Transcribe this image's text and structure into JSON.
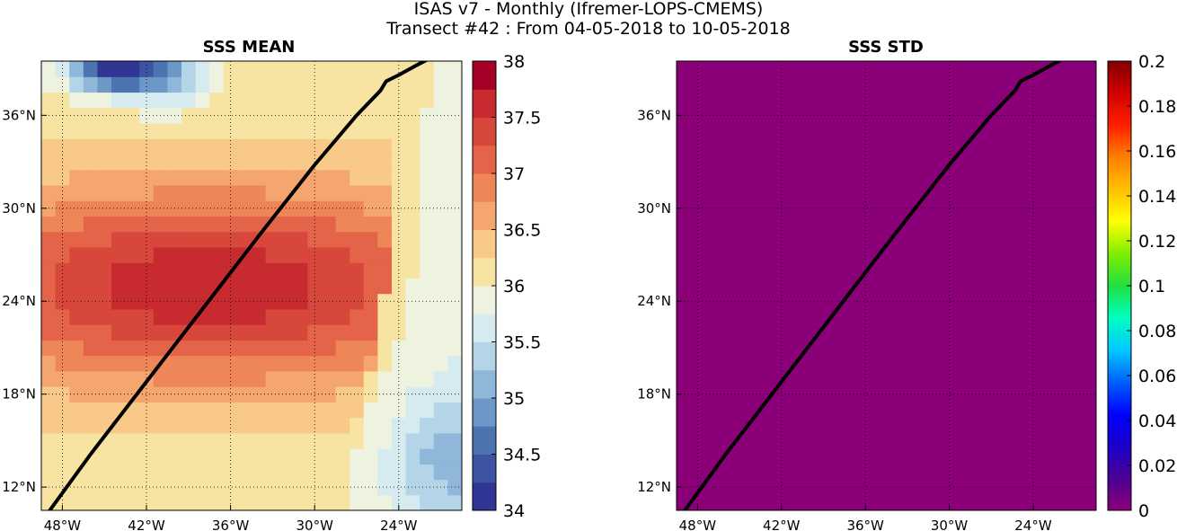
{
  "figure": {
    "title_line1": "ISAS v7 - Monthly (Ifremer-LOPS-CMEMS)",
    "title_line2": "Transect #42 : From 04-05-2018 to 10-05-2018"
  },
  "chart_data": [
    {
      "type": "heatmap",
      "title": "SSS MEAN",
      "xlabel": "",
      "ylabel": "",
      "xlim": [
        -49.5,
        -19.5
      ],
      "ylim": [
        10.5,
        39.5
      ],
      "x_ticks": [
        -48,
        -42,
        -36,
        -30,
        -24
      ],
      "y_ticks": [
        12,
        18,
        24,
        30,
        36
      ],
      "x_tick_labels": [
        "48°W",
        "42°W",
        "36°W",
        "30°W",
        "24°W"
      ],
      "y_tick_labels": [
        "12°N",
        "18°N",
        "24°N",
        "30°N",
        "36°N"
      ],
      "grid": true,
      "colormap": "RdYlBu_r",
      "color_range": [
        34,
        38
      ],
      "color_levels": 16,
      "colorbar_ticks": [
        34,
        34.5,
        35,
        35.5,
        36,
        36.5,
        37,
        37.5,
        38
      ],
      "colorbar_tick_labels": [
        "34",
        "34.5",
        "35",
        "35.5",
        "36",
        "36.5",
        "37",
        "37.5",
        "38"
      ],
      "colorbar_colors": [
        "#313695",
        "#3e54a3",
        "#4b74b1",
        "#6b98c7",
        "#8fb7d9",
        "#b4d4e8",
        "#d6ebf0",
        "#eef3e0",
        "#f7e4a2",
        "#f9c989",
        "#f5a66e",
        "#ee8657",
        "#e36448",
        "#d8473b",
        "#c72a2f",
        "#a50026"
      ],
      "field_model": {
        "east_boundary_lon": [
          -24.0,
          -24.5,
          -25.0,
          -26.0,
          -27.5,
          -29.0
        ],
        "east_boundary_lat": [
          35,
          30,
          25,
          20,
          15,
          11
        ],
        "high_core": {
          "lon": -37.5,
          "lat": 25.0,
          "value": 37.7,
          "lon_decay": 20,
          "lat_decay": 6.5
        },
        "low_patches": [
          {
            "lon": -44.5,
            "lat": 39.0,
            "value": -2.0,
            "lon_decay": 3,
            "lat_decay": 1.5
          },
          {
            "lon": -40.5,
            "lat": 39.0,
            "value": -1.0,
            "lon_decay": 3,
            "lat_decay": 2.5
          },
          {
            "lon": -21.0,
            "lat": 14.0,
            "value": -0.6,
            "lon_decay": 4,
            "lat_decay": 4
          }
        ]
      },
      "transect": {
        "lon": [
          -48.9,
          -46,
          -42,
          -38,
          -34,
          -30,
          -27,
          -25.3,
          -24.9,
          -24.0,
          -22.8,
          -21.3
        ],
        "lat": [
          10.5,
          14.1,
          18.8,
          23.5,
          28.2,
          32.8,
          36.0,
          37.6,
          38.2,
          38.6,
          39.2,
          39.9
        ]
      }
    },
    {
      "type": "heatmap",
      "title": "SSS STD",
      "xlabel": "",
      "ylabel": "",
      "xlim": [
        -49.5,
        -19.5
      ],
      "ylim": [
        10.5,
        39.5
      ],
      "x_ticks": [
        -48,
        -42,
        -36,
        -30,
        -24
      ],
      "y_ticks": [
        12,
        18,
        24,
        30,
        36
      ],
      "x_tick_labels": [
        "48°W",
        "42°W",
        "36°W",
        "30°W",
        "24°W"
      ],
      "y_tick_labels": [
        "12°N",
        "18°N",
        "24°N",
        "30°N",
        "36°N"
      ],
      "grid": true,
      "colormap": "jet-like",
      "color_range": [
        0,
        0.2
      ],
      "uniform_value": 0,
      "fill_color": "#8b0078",
      "colorbar_ticks": [
        0,
        0.02,
        0.04,
        0.06,
        0.08,
        0.1,
        0.12,
        0.14,
        0.16,
        0.18,
        0.2
      ],
      "colorbar_tick_labels": [
        "0",
        "0.02",
        "0.04",
        "0.06",
        "0.08",
        "0.1",
        "0.12",
        "0.14",
        "0.16",
        "0.18",
        "0.2"
      ],
      "colorbar_gradient": [
        "#8b0078",
        "#4b0096",
        "#1a00c8",
        "#0000ff",
        "#0060ff",
        "#00c8ff",
        "#00ffc0",
        "#20e040",
        "#80ee00",
        "#ffff00",
        "#ffc000",
        "#ff8000",
        "#ff2000",
        "#d00000",
        "#800000"
      ],
      "transect": {
        "lon": [
          -48.9,
          -46,
          -42,
          -38,
          -34,
          -30,
          -27,
          -25.3,
          -24.9,
          -24.0,
          -22.8,
          -21.3
        ],
        "lat": [
          10.5,
          14.1,
          18.8,
          23.5,
          28.2,
          32.8,
          36.0,
          37.6,
          38.2,
          38.6,
          39.2,
          39.9
        ]
      }
    }
  ]
}
